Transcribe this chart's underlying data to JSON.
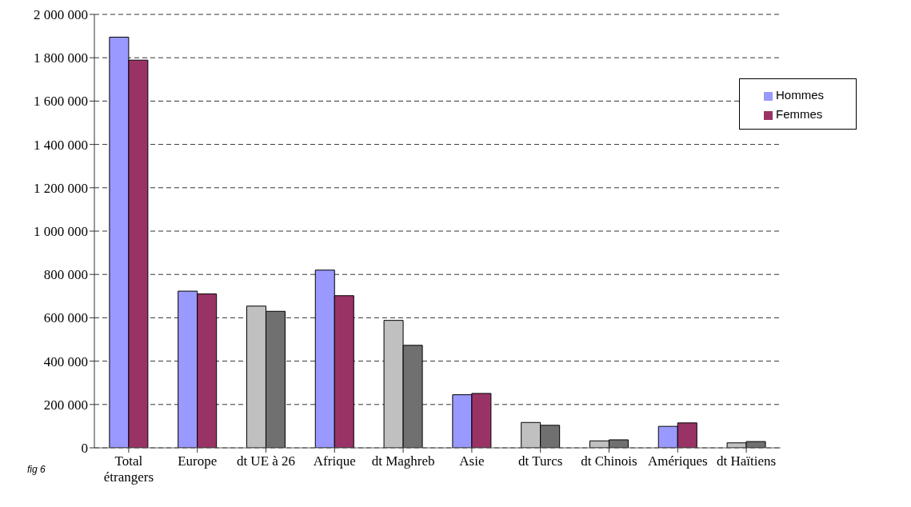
{
  "chart_data": {
    "type": "bar",
    "categories": [
      "Total étrangers",
      "Europe",
      "dt UE à 26",
      "Afrique",
      "dt Maghreb",
      "Asie",
      "dt Turcs",
      "dt Chinois",
      "Amériques",
      "dt Haïtiens"
    ],
    "series": [
      {
        "name": "Hommes",
        "color": "#9999ff",
        "values": [
          1895000,
          723000,
          654000,
          820000,
          588000,
          245000,
          117000,
          32000,
          99000,
          23000
        ],
        "colors": [
          "#9999ff",
          "#9999ff",
          "#c0c0c0",
          "#9999ff",
          "#c0c0c0",
          "#9999ff",
          "#c0c0c0",
          "#c0c0c0",
          "#9999ff",
          "#c0c0c0"
        ]
      },
      {
        "name": "Femmes",
        "color": "#993366",
        "values": [
          1789000,
          710000,
          630000,
          702000,
          473000,
          251000,
          104000,
          37000,
          115000,
          29000
        ],
        "colors": [
          "#993366",
          "#993366",
          "#707070",
          "#993366",
          "#707070",
          "#993366",
          "#707070",
          "#707070",
          "#993366",
          "#707070"
        ]
      }
    ],
    "ylim": [
      0,
      2000000
    ],
    "yticks": [
      0,
      {
        "value": 200000,
        "label": "200 000"
      },
      {
        "value": 400000,
        "label": "400 000"
      },
      {
        "value": 600000,
        "label": "600 000"
      },
      {
        "value": 800000,
        "label": "800 000"
      },
      {
        "value": 1000000,
        "label": "1 000 000"
      },
      {
        "value": 1200000,
        "label": "1 200 000"
      },
      {
        "value": 1400000,
        "label": "1 400 000"
      },
      {
        "value": 1600000,
        "label": "1 600 000"
      },
      {
        "value": 1800000,
        "label": "1 800 000"
      },
      {
        "value": 2000000,
        "label": "2 000 000"
      }
    ],
    "grid": "y",
    "legend": "top right",
    "annotations": [
      "fig 6"
    ]
  }
}
